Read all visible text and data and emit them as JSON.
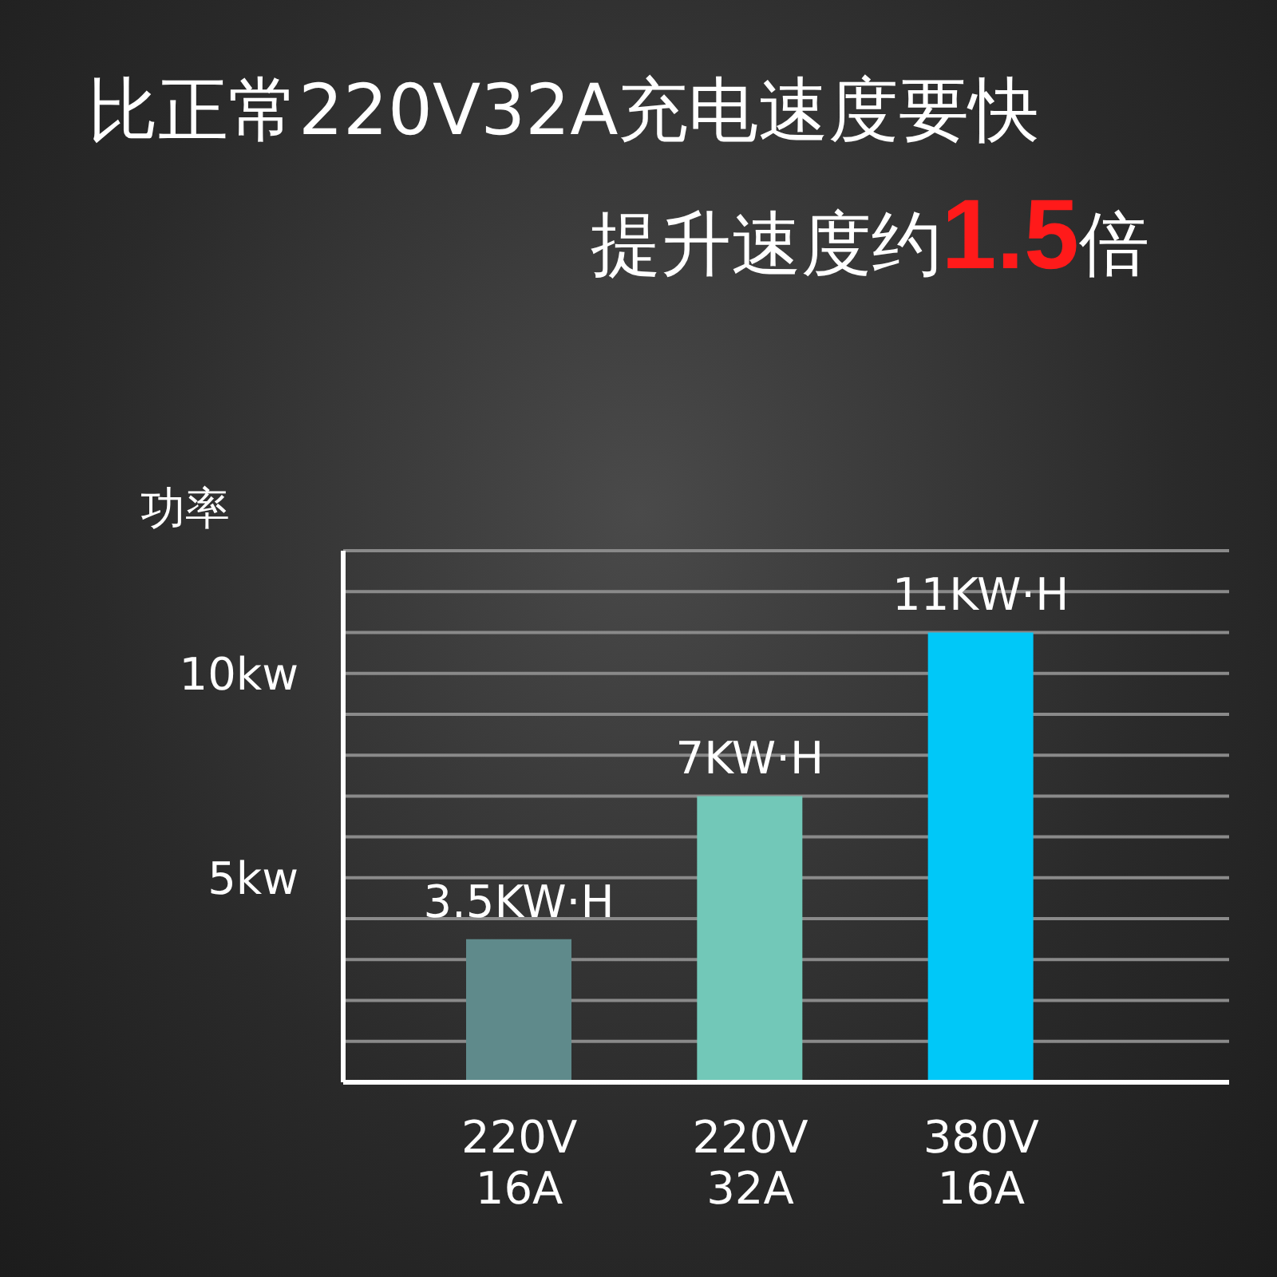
{
  "chart_data": {
    "type": "bar",
    "title": "比正常220V32A充电速度要快",
    "subtitle": "提升速度约1.5倍",
    "ylabel": "功率",
    "categories": [
      "220V\n16A",
      "220V\n32A",
      "380V\n16A"
    ],
    "values": [
      3.5,
      7,
      11
    ],
    "colors": [
      "#5f8a8b",
      "#72c8b8",
      "#00c8f8"
    ],
    "value_labels": [
      "3.5KW·H",
      "7KW·H",
      "11KW·H"
    ],
    "ylim": [
      0,
      13
    ],
    "yticks": [
      {
        "value": 0,
        "label": null
      },
      {
        "value": 1,
        "label": null
      },
      {
        "value": 2,
        "label": null
      },
      {
        "value": 3,
        "label": null
      },
      {
        "value": 4,
        "label": null
      },
      {
        "value": 5,
        "label": "5kw"
      },
      {
        "value": 6,
        "label": null
      },
      {
        "value": 7,
        "label": null
      },
      {
        "value": 8,
        "label": null
      },
      {
        "value": 9,
        "label": null
      },
      {
        "value": 10,
        "label": "10kw"
      },
      {
        "value": 11,
        "label": null
      },
      {
        "value": 12,
        "label": null
      },
      {
        "value": 13,
        "label": null
      }
    ],
    "grid": "y"
  }
}
